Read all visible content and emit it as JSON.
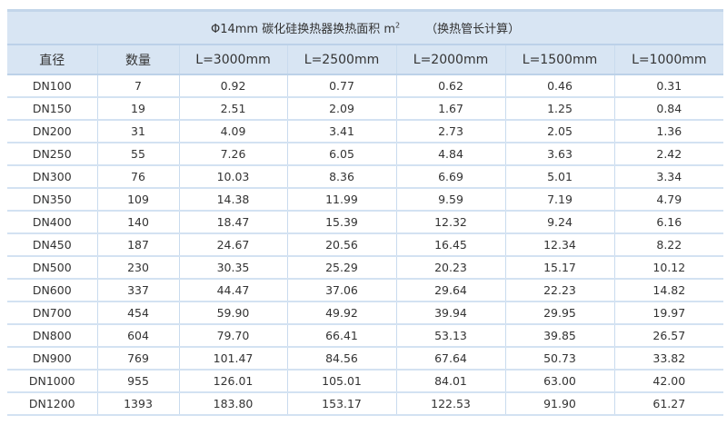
{
  "title": {
    "main": "Φ14mm 碳化硅换热器换热面积 m",
    "sup": "2",
    "note": "（换热管长计算）"
  },
  "headers": [
    "直径",
    "数量",
    "L=3000mm",
    "L=2500mm",
    "L=2000mm",
    "L=1500mm",
    "L=1000mm"
  ],
  "rows": [
    [
      "DN100",
      "7",
      "0.92",
      "0.77",
      "0.62",
      "0.46",
      "0.31"
    ],
    [
      "DN150",
      "19",
      "2.51",
      "2.09",
      "1.67",
      "1.25",
      "0.84"
    ],
    [
      "DN200",
      "31",
      "4.09",
      "3.41",
      "2.73",
      "2.05",
      "1.36"
    ],
    [
      "DN250",
      "55",
      "7.26",
      "6.05",
      "4.84",
      "3.63",
      "2.42"
    ],
    [
      "DN300",
      "76",
      "10.03",
      "8.36",
      "6.69",
      "5.01",
      "3.34"
    ],
    [
      "DN350",
      "109",
      "14.38",
      "11.99",
      "9.59",
      "7.19",
      "4.79"
    ],
    [
      "DN400",
      "140",
      "18.47",
      "15.39",
      "12.32",
      "9.24",
      "6.16"
    ],
    [
      "DN450",
      "187",
      "24.67",
      "20.56",
      "16.45",
      "12.34",
      "8.22"
    ],
    [
      "DN500",
      "230",
      "30.35",
      "25.29",
      "20.23",
      "15.17",
      "10.12"
    ],
    [
      "DN600",
      "337",
      "44.47",
      "37.06",
      "29.64",
      "22.23",
      "14.82"
    ],
    [
      "DN700",
      "454",
      "59.90",
      "49.92",
      "39.94",
      "29.95",
      "19.97"
    ],
    [
      "DN800",
      "604",
      "79.70",
      "66.41",
      "53.13",
      "39.85",
      "26.57"
    ],
    [
      "DN900",
      "769",
      "101.47",
      "84.56",
      "67.64",
      "50.73",
      "33.82"
    ],
    [
      "DN1000",
      "955",
      "126.01",
      "105.01",
      "84.01",
      "63.00",
      "42.00"
    ],
    [
      "DN1200",
      "1393",
      "183.80",
      "153.17",
      "122.53",
      "91.90",
      "61.27"
    ]
  ],
  "colors": {
    "header_bg": "#d8e5f3",
    "border": "#c9dbee",
    "text": "#333333"
  }
}
